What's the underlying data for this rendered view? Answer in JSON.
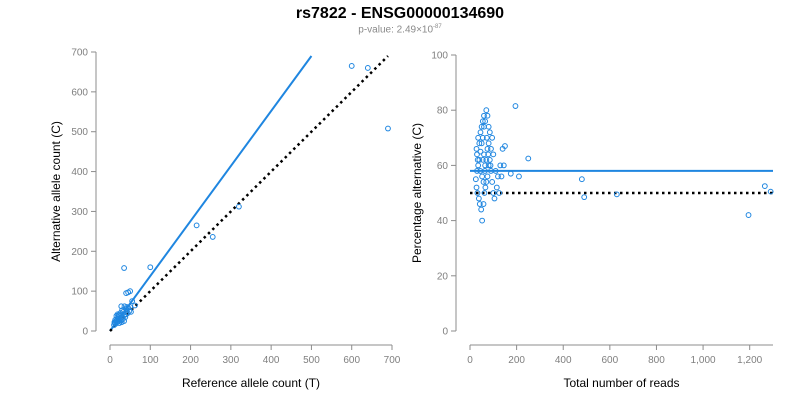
{
  "title": "rs7822 - ENSG00000134690",
  "subtitle": {
    "label": "p-value: 2.49×10",
    "exponent": "-87"
  },
  "colors": {
    "series": "#1f86e0",
    "reference_line": "#000000",
    "axis": "#8c8c8c",
    "tick_label": "#7f7f7f",
    "axis_title": "#000000"
  },
  "chart_data": [
    {
      "type": "scatter",
      "name": "left",
      "xlabel": "Reference allele count (T)",
      "ylabel": "Alternative allele count (C)",
      "xlim": [
        0,
        700
      ],
      "ylim": [
        0,
        700
      ],
      "xticks": [
        0,
        100,
        200,
        300,
        400,
        500,
        600,
        700
      ],
      "yticks": [
        0,
        100,
        200,
        300,
        400,
        500,
        600,
        700
      ],
      "xtick_labels": [
        "0",
        "100",
        "200",
        "300",
        "400",
        "500",
        "600",
        "700"
      ],
      "ytick_labels": [
        "0",
        "100",
        "200",
        "300",
        "400",
        "500",
        "600",
        "700"
      ],
      "fit_line": {
        "from": [
          0,
          0
        ],
        "to": [
          500,
          690
        ]
      },
      "reference_line": {
        "from": [
          0,
          0
        ],
        "to": [
          690,
          690
        ]
      },
      "points": [
        [
          600,
          665
        ],
        [
          640,
          660
        ],
        [
          690,
          508
        ],
        [
          320,
          312
        ],
        [
          215,
          265
        ],
        [
          255,
          236
        ],
        [
          35,
          158
        ],
        [
          100,
          160
        ],
        [
          50,
          100
        ],
        [
          45,
          97
        ],
        [
          40,
          95
        ],
        [
          55,
          75
        ],
        [
          62,
          64
        ],
        [
          50,
          60
        ],
        [
          45,
          58
        ],
        [
          40,
          55
        ],
        [
          30,
          52
        ],
        [
          28,
          62
        ],
        [
          36,
          62
        ],
        [
          42,
          60
        ],
        [
          33,
          48
        ],
        [
          26,
          45
        ],
        [
          22,
          40
        ],
        [
          20,
          35
        ],
        [
          18,
          30
        ],
        [
          15,
          25
        ],
        [
          12,
          20
        ],
        [
          10,
          15
        ],
        [
          24,
          28
        ],
        [
          30,
          34
        ],
        [
          36,
          40
        ],
        [
          40,
          42
        ],
        [
          16,
          38
        ],
        [
          19,
          42
        ],
        [
          25,
          38
        ],
        [
          21,
          30
        ],
        [
          27,
          26
        ],
        [
          32,
          30
        ],
        [
          38,
          35
        ],
        [
          14,
          18
        ],
        [
          17,
          22
        ],
        [
          23,
          20
        ],
        [
          29,
          22
        ],
        [
          35,
          25
        ],
        [
          44,
          45
        ],
        [
          48,
          50
        ],
        [
          52,
          48
        ],
        [
          13,
          28
        ],
        [
          20,
          24
        ],
        [
          11,
          22
        ]
      ]
    },
    {
      "type": "scatter",
      "name": "right",
      "xlabel": "Total number of reads",
      "ylabel": "Percentage alternative (C)",
      "xlim": [
        0,
        1300
      ],
      "ylim": [
        0,
        100
      ],
      "xticks": [
        0,
        200,
        400,
        600,
        800,
        1000,
        1200
      ],
      "yticks": [
        0,
        20,
        40,
        60,
        80,
        100
      ],
      "xtick_labels": [
        "0",
        "200",
        "400",
        "600",
        "800",
        "1,000",
        "1,200"
      ],
      "ytick_labels": [
        "0",
        "20",
        "40",
        "60",
        "80",
        "100"
      ],
      "fit_line": {
        "y": 58
      },
      "reference_line": {
        "y": 50
      },
      "points": [
        [
          1265,
          52.5
        ],
        [
          1290,
          50.5
        ],
        [
          1195,
          42
        ],
        [
          630,
          49.5
        ],
        [
          480,
          55
        ],
        [
          490,
          48.5
        ],
        [
          195,
          81.5
        ],
        [
          250,
          62.5
        ],
        [
          210,
          56
        ],
        [
          175,
          57
        ],
        [
          150,
          67
        ],
        [
          140,
          66
        ],
        [
          130,
          60
        ],
        [
          120,
          56
        ],
        [
          110,
          58
        ],
        [
          100,
          64
        ],
        [
          95,
          70
        ],
        [
          90,
          66
        ],
        [
          85,
          72
        ],
        [
          80,
          74
        ],
        [
          75,
          78
        ],
        [
          70,
          80
        ],
        [
          65,
          76
        ],
        [
          60,
          74
        ],
        [
          55,
          70
        ],
        [
          50,
          68
        ],
        [
          45,
          65
        ],
        [
          40,
          62
        ],
        [
          35,
          60
        ],
        [
          30,
          58
        ],
        [
          25,
          55
        ],
        [
          28,
          52
        ],
        [
          32,
          50
        ],
        [
          38,
          48
        ],
        [
          42,
          46
        ],
        [
          48,
          44
        ],
        [
          52,
          40
        ],
        [
          58,
          46
        ],
        [
          62,
          50
        ],
        [
          66,
          52
        ],
        [
          70,
          54
        ],
        [
          75,
          56
        ],
        [
          80,
          60
        ],
        [
          85,
          62
        ],
        [
          90,
          58
        ],
        [
          95,
          54
        ],
        [
          100,
          50
        ],
        [
          105,
          48
        ],
        [
          55,
          62
        ],
        [
          60,
          64
        ],
        [
          65,
          60
        ],
        [
          70,
          62
        ],
        [
          75,
          66
        ],
        [
          80,
          68
        ],
        [
          45,
          72
        ],
        [
          50,
          74
        ],
        [
          55,
          76
        ],
        [
          60,
          78
        ],
        [
          40,
          68
        ],
        [
          35,
          70
        ],
        [
          30,
          64
        ],
        [
          28,
          66
        ],
        [
          33,
          62
        ],
        [
          44,
          58
        ],
        [
          52,
          56
        ],
        [
          58,
          54
        ],
        [
          64,
          58
        ],
        [
          72,
          70
        ],
        [
          78,
          64
        ],
        [
          88,
          60
        ],
        [
          115,
          52
        ],
        [
          125,
          50
        ],
        [
          135,
          56
        ],
        [
          145,
          60
        ]
      ]
    }
  ]
}
